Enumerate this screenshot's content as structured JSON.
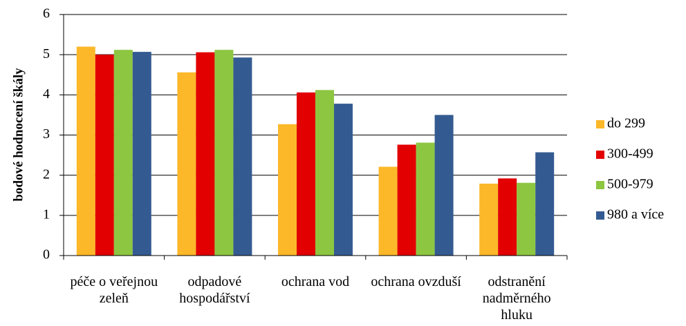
{
  "chart_data": {
    "type": "bar",
    "y_label": "bodové hodnocení škály",
    "categories": [
      "péče o veřejnou zeleň",
      "odpadové hospodářství",
      "ochrana vod",
      "ochrana ovzduší",
      "odstranění nadměrného hluku"
    ],
    "series": [
      {
        "name": "do 299",
        "color": "#fcb829",
        "values": [
          5.2,
          4.56,
          3.27,
          2.21,
          1.79
        ]
      },
      {
        "name": "300-499",
        "color": "#e20000",
        "values": [
          5.0,
          5.06,
          4.06,
          2.76,
          1.92
        ]
      },
      {
        "name": "500-979",
        "color": "#8dc641",
        "values": [
          5.12,
          5.12,
          4.12,
          2.81,
          1.81
        ]
      },
      {
        "name": "980 a více",
        "color": "#345b91",
        "values": [
          5.07,
          4.93,
          3.78,
          3.5,
          2.57
        ]
      }
    ],
    "ylim": [
      0,
      6
    ],
    "yticks": [
      0,
      1,
      2,
      3,
      4,
      5,
      6
    ],
    "grid": true,
    "legend": "right"
  }
}
